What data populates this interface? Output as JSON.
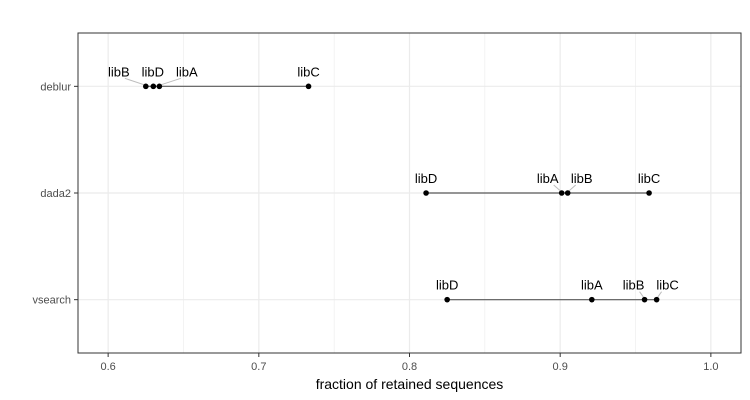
{
  "chart_data": {
    "type": "scatter",
    "title": "",
    "xlabel": "fraction of retained sequences",
    "ylabel": "",
    "xlim": [
      0.58,
      1.02
    ],
    "x_ticks": [
      "0.6",
      "0.7",
      "0.8",
      "0.9",
      "1.0"
    ],
    "categories": [
      "deblur",
      "dada2",
      "vsearch"
    ],
    "grid": true,
    "legend": "none",
    "colors": {
      "point": "#000000",
      "segment": "#595959",
      "grid": "#ebebeb",
      "panel_border": "#333333",
      "label_leader": "#bdbdbd"
    },
    "groups": [
      {
        "name": "deblur",
        "points": [
          {
            "label": "libB",
            "x": 0.625
          },
          {
            "label": "libD",
            "x": 0.63
          },
          {
            "label": "libA",
            "x": 0.634
          },
          {
            "label": "libC",
            "x": 0.733
          }
        ]
      },
      {
        "name": "dada2",
        "points": [
          {
            "label": "libD",
            "x": 0.811
          },
          {
            "label": "libA",
            "x": 0.901
          },
          {
            "label": "libB",
            "x": 0.905
          },
          {
            "label": "libC",
            "x": 0.959
          }
        ]
      },
      {
        "name": "vsearch",
        "points": [
          {
            "label": "libD",
            "x": 0.825
          },
          {
            "label": "libA",
            "x": 0.921
          },
          {
            "label": "libB",
            "x": 0.956
          },
          {
            "label": "libC",
            "x": 0.964
          }
        ]
      }
    ]
  }
}
